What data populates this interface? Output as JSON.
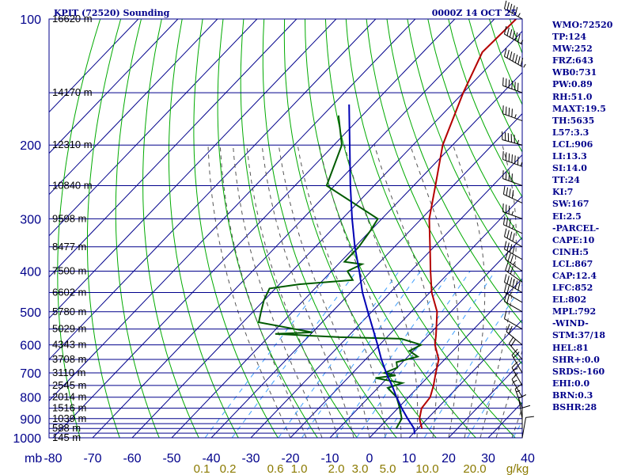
{
  "header": {
    "station": "KPIT (72520) Sounding",
    "time": "0000Z 14 OCT 25"
  },
  "axes": {
    "pressure_ticks_mb": [
      100,
      200,
      300,
      400,
      500,
      600,
      700,
      800,
      900,
      1000
    ],
    "pressure_labels": [
      "100",
      "200",
      "300",
      "400",
      "500",
      "600",
      "700",
      "800",
      "900",
      "1000"
    ],
    "extra_pressure_lines_mb": [
      150,
      250,
      350,
      450,
      550,
      650,
      750,
      850,
      925,
      950,
      975
    ],
    "temperature_ticks_c": [
      -80,
      -70,
      -60,
      -50,
      -40,
      -30,
      -20,
      -10,
      0,
      10,
      20,
      30,
      40
    ],
    "temperature_labels": [
      "-80",
      "-70",
      "-60",
      "-50",
      "-40",
      "-30",
      "-20",
      "-10",
      "0",
      "10",
      "20",
      "30",
      "40"
    ],
    "pressure_unit_label": "mb",
    "mixing_ratio_unit_label": "g/kg",
    "mixing_ratio_labels": [
      "0.1",
      "0.2",
      "0.6",
      "1.0",
      "2.0",
      "3.0",
      "5.0",
      "10.0",
      "20.0"
    ],
    "height_labels": [
      {
        "p": 100,
        "label": "16620 m"
      },
      {
        "p": 150,
        "label": "14170 m"
      },
      {
        "p": 200,
        "label": "12310 m"
      },
      {
        "p": 250,
        "label": "10840 m"
      },
      {
        "p": 300,
        "label": "9598 m"
      },
      {
        "p": 350,
        "label": "8477 m"
      },
      {
        "p": 400,
        "label": "7500 m"
      },
      {
        "p": 450,
        "label": "6602 m"
      },
      {
        "p": 500,
        "label": "5780 m"
      },
      {
        "p": 550,
        "label": "5029 m"
      },
      {
        "p": 600,
        "label": "4343 m"
      },
      {
        "p": 650,
        "label": "3708 m"
      },
      {
        "p": 700,
        "label": "3110 m"
      },
      {
        "p": 750,
        "label": "2545 m"
      },
      {
        "p": 800,
        "label": "2014 m"
      },
      {
        "p": 850,
        "label": "1516 m"
      },
      {
        "p": 900,
        "label": "1039 m"
      },
      {
        "p": 950,
        "label": "588 m"
      },
      {
        "p": 1000,
        "label": "145 m"
      }
    ]
  },
  "chart_data": {
    "type": "line",
    "title": "KPIT (72520) Sounding",
    "xlabel": "",
    "ylabel": "mb",
    "y_scale": "log",
    "skew_deg_c": 40,
    "xlim": [
      -80,
      40
    ],
    "ylim": [
      1000,
      100
    ],
    "grid": true,
    "series": [
      {
        "color": "#b40000",
        "points": [
          [
            100,
            -64.5
          ],
          [
            120,
            -65.0
          ],
          [
            150,
            -60.0
          ],
          [
            200,
            -52.5
          ],
          [
            250,
            -44.5
          ],
          [
            300,
            -38.0
          ],
          [
            350,
            -31.0
          ],
          [
            400,
            -25.0
          ],
          [
            450,
            -19.5
          ],
          [
            500,
            -13.5
          ],
          [
            550,
            -9.5
          ],
          [
            570,
            -8.0
          ],
          [
            600,
            -6.0
          ],
          [
            650,
            -1.5
          ],
          [
            700,
            1.0
          ],
          [
            750,
            3.5
          ],
          [
            800,
            5.5
          ],
          [
            850,
            6.0
          ],
          [
            900,
            8.0
          ],
          [
            925,
            9.5
          ],
          [
            950,
            11.0
          ]
        ]
      },
      {
        "color": "#005a00",
        "points": [
          [
            170,
            -86.0
          ],
          [
            200,
            -78.0
          ],
          [
            250,
            -72.0
          ],
          [
            300,
            -51.0
          ],
          [
            320,
            -50.0
          ],
          [
            350,
            -49.0
          ],
          [
            380,
            -49.0
          ],
          [
            385,
            -44.0
          ],
          [
            400,
            -46.0
          ],
          [
            420,
            -42.5
          ],
          [
            430,
            -55.0
          ],
          [
            440,
            -61.5
          ],
          [
            470,
            -60.0
          ],
          [
            500,
            -58.0
          ],
          [
            530,
            -56.0
          ],
          [
            560,
            -40.0
          ],
          [
            565,
            -49.0
          ],
          [
            575,
            -32.0
          ],
          [
            580,
            -16.0
          ],
          [
            600,
            -9.5
          ],
          [
            620,
            -11.0
          ],
          [
            640,
            -7.5
          ],
          [
            660,
            -11.5
          ],
          [
            680,
            -10.0
          ],
          [
            700,
            -12.0
          ],
          [
            710,
            -8.5
          ],
          [
            720,
            -13.0
          ],
          [
            740,
            -5.0
          ],
          [
            760,
            -7.5
          ],
          [
            800,
            -3.0
          ],
          [
            850,
            0.5
          ],
          [
            900,
            3.5
          ],
          [
            950,
            4.5
          ]
        ]
      },
      {
        "color": "#0000b4",
        "points": [
          [
            160,
            -86.0
          ],
          [
            200,
            -76.0
          ],
          [
            250,
            -66.0
          ],
          [
            300,
            -57.5
          ],
          [
            350,
            -50.0
          ],
          [
            400,
            -43.0
          ],
          [
            450,
            -37.0
          ],
          [
            500,
            -31.0
          ],
          [
            550,
            -25.5
          ],
          [
            600,
            -20.5
          ],
          [
            650,
            -16.0
          ],
          [
            700,
            -11.5
          ],
          [
            750,
            -7.0
          ],
          [
            800,
            -3.0
          ],
          [
            850,
            1.0
          ],
          [
            900,
            5.0
          ],
          [
            950,
            9.0
          ],
          [
            980,
            10.5
          ]
        ]
      }
    ]
  },
  "wind_barbs": {
    "color": "#000000",
    "samples": [
      {
        "p": 100,
        "dir": 300,
        "kt": 55
      },
      {
        "p": 115,
        "dir": 300,
        "kt": 65
      },
      {
        "p": 130,
        "dir": 300,
        "kt": 75
      },
      {
        "p": 150,
        "dir": 290,
        "kt": 60
      },
      {
        "p": 175,
        "dir": 290,
        "kt": 45
      },
      {
        "p": 200,
        "dir": 285,
        "kt": 55
      },
      {
        "p": 225,
        "dir": 290,
        "kt": 65
      },
      {
        "p": 250,
        "dir": 290,
        "kt": 40
      },
      {
        "p": 275,
        "dir": 295,
        "kt": 40
      },
      {
        "p": 300,
        "dir": 290,
        "kt": 35
      },
      {
        "p": 325,
        "dir": 295,
        "kt": 35
      },
      {
        "p": 350,
        "dir": 300,
        "kt": 40
      },
      {
        "p": 375,
        "dir": 300,
        "kt": 40
      },
      {
        "p": 400,
        "dir": 305,
        "kt": 35
      },
      {
        "p": 425,
        "dir": 305,
        "kt": 30
      },
      {
        "p": 450,
        "dir": 300,
        "kt": 60
      },
      {
        "p": 475,
        "dir": 300,
        "kt": 25
      },
      {
        "p": 500,
        "dir": 300,
        "kt": 20
      },
      {
        "p": 550,
        "dir": 300,
        "kt": 10
      },
      {
        "p": 600,
        "dir": 310,
        "kt": 20
      },
      {
        "p": 650,
        "dir": 320,
        "kt": 20
      },
      {
        "p": 700,
        "dir": 330,
        "kt": 20
      },
      {
        "p": 750,
        "dir": 330,
        "kt": 15
      },
      {
        "p": 800,
        "dir": 330,
        "kt": 15
      },
      {
        "p": 850,
        "dir": 340,
        "kt": 15
      },
      {
        "p": 900,
        "dir": 350,
        "kt": 10
      },
      {
        "p": 950,
        "dir": 0,
        "kt": 10
      },
      {
        "p": 1000,
        "dir": 10,
        "kt": 10
      }
    ]
  },
  "indices": [
    "WMO:72520",
    "TP:124",
    "MW:252",
    "FRZ:643",
    "WB0:731",
    "PW:0.89",
    "RH:51.0",
    "MAXT:19.5",
    "TH:5635",
    "L57:3.3",
    "LCL:906",
    "LI:13.3",
    "SI:14.0",
    "TT:24",
    "KI:7",
    "SW:167",
    "EI:2.5",
    "-PARCEL-",
    "CAPE:10",
    "CINH:5",
    "LCL:867",
    "CAP:12.4",
    "LFC:852",
    "EL:802",
    "MPL:792",
    "-WIND-",
    "STM:37/18",
    "HEL:81",
    "SHR+:0.0",
    "SRDS:-160",
    "EHI:0.0",
    "BRN:0.3",
    "BSHR:28"
  ],
  "colors": {
    "isobar": "#00008b",
    "isotherm": "#00008b",
    "dry_adiabat": "#00aa00",
    "moist_adiabat": "#555555",
    "mixing_ratio": "#3fa0ff",
    "background": "#ffffff"
  }
}
